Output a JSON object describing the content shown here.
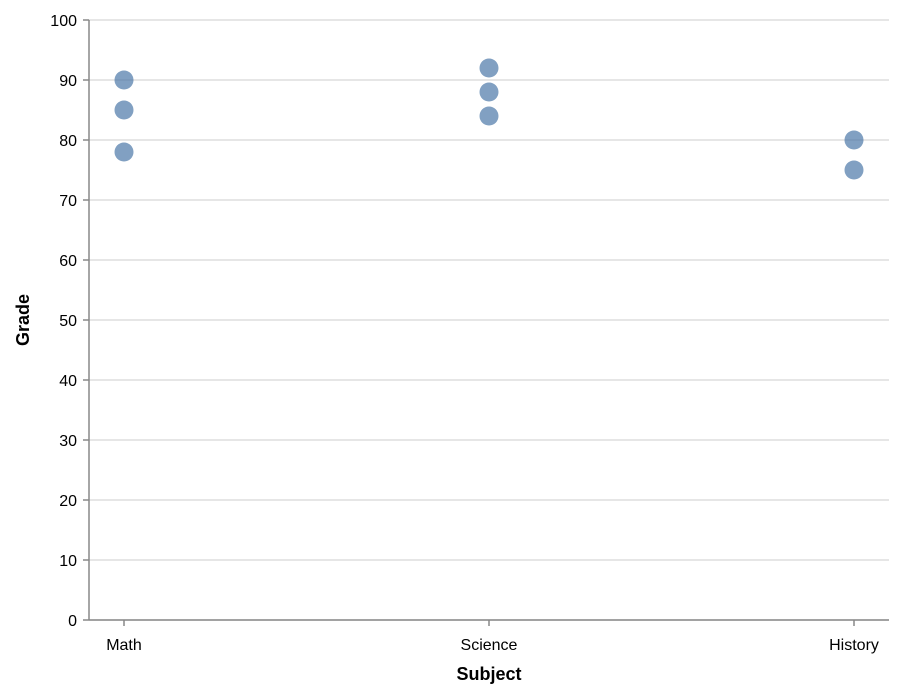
{
  "chart_data": {
    "type": "scatter",
    "xlabel": "Subject",
    "ylabel": "Grade",
    "categories": [
      "Math",
      "Science",
      "History"
    ],
    "ylim": [
      0,
      100
    ],
    "yticks": [
      0,
      10,
      20,
      30,
      40,
      50,
      60,
      70,
      80,
      90,
      100
    ],
    "grid": true,
    "point_color": "#4c78a8",
    "points": [
      {
        "x": "Math",
        "y": 90
      },
      {
        "x": "Math",
        "y": 85
      },
      {
        "x": "Math",
        "y": 78
      },
      {
        "x": "Science",
        "y": 92
      },
      {
        "x": "Science",
        "y": 88
      },
      {
        "x": "Science",
        "y": 84
      },
      {
        "x": "History",
        "y": 80
      },
      {
        "x": "History",
        "y": 75
      }
    ]
  }
}
